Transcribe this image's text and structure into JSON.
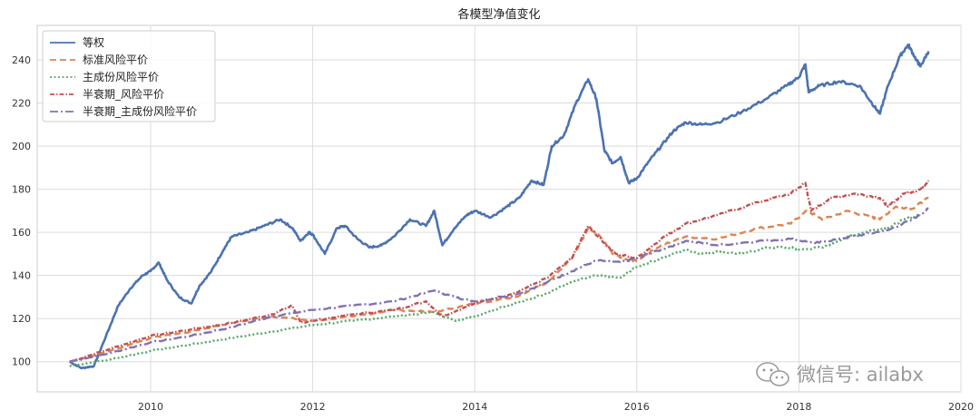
{
  "chart_data": {
    "type": "line",
    "title": "各模型净值变化",
    "xlabel": "",
    "ylabel": "",
    "xlim": [
      2008.6,
      2020.0
    ],
    "ylim": [
      86,
      256
    ],
    "x_ticks": [
      "2010",
      "2012",
      "2014",
      "2016",
      "2018",
      "2020"
    ],
    "y_ticks": [
      "100",
      "120",
      "140",
      "160",
      "180",
      "200",
      "220",
      "240"
    ],
    "grid": true,
    "legend_position": "top-left",
    "series": [
      {
        "name": "等权",
        "color": "#4c72b0",
        "dash": "solid",
        "points": [
          [
            2009.0,
            100
          ],
          [
            2009.15,
            97
          ],
          [
            2009.3,
            98
          ],
          [
            2009.45,
            112
          ],
          [
            2009.6,
            126
          ],
          [
            2009.75,
            134
          ],
          [
            2009.9,
            140
          ],
          [
            2010.0,
            142
          ],
          [
            2010.1,
            146
          ],
          [
            2010.2,
            138
          ],
          [
            2010.35,
            130
          ],
          [
            2010.5,
            127
          ],
          [
            2010.6,
            135
          ],
          [
            2010.75,
            142
          ],
          [
            2010.9,
            152
          ],
          [
            2011.0,
            158
          ],
          [
            2011.2,
            160
          ],
          [
            2011.4,
            163
          ],
          [
            2011.6,
            166
          ],
          [
            2011.75,
            162
          ],
          [
            2011.85,
            156
          ],
          [
            2011.95,
            160
          ],
          [
            2012.0,
            159
          ],
          [
            2012.15,
            150
          ],
          [
            2012.3,
            162
          ],
          [
            2012.4,
            163
          ],
          [
            2012.55,
            157
          ],
          [
            2012.7,
            153
          ],
          [
            2012.85,
            154
          ],
          [
            2013.0,
            158
          ],
          [
            2013.2,
            166
          ],
          [
            2013.4,
            163
          ],
          [
            2013.5,
            170
          ],
          [
            2013.6,
            154
          ],
          [
            2013.75,
            162
          ],
          [
            2013.9,
            168
          ],
          [
            2014.0,
            170
          ],
          [
            2014.2,
            167
          ],
          [
            2014.4,
            172
          ],
          [
            2014.55,
            176
          ],
          [
            2014.7,
            184
          ],
          [
            2014.85,
            182
          ],
          [
            2014.95,
            200
          ],
          [
            2015.1,
            205
          ],
          [
            2015.25,
            220
          ],
          [
            2015.4,
            231
          ],
          [
            2015.5,
            222
          ],
          [
            2015.6,
            198
          ],
          [
            2015.7,
            192
          ],
          [
            2015.8,
            195
          ],
          [
            2015.9,
            183
          ],
          [
            2016.0,
            185
          ],
          [
            2016.15,
            193
          ],
          [
            2016.3,
            200
          ],
          [
            2016.45,
            207
          ],
          [
            2016.6,
            211
          ],
          [
            2016.8,
            210
          ],
          [
            2017.0,
            211
          ],
          [
            2017.3,
            216
          ],
          [
            2017.6,
            222
          ],
          [
            2017.85,
            228
          ],
          [
            2018.0,
            232
          ],
          [
            2018.08,
            238
          ],
          [
            2018.12,
            225
          ],
          [
            2018.25,
            228
          ],
          [
            2018.5,
            230
          ],
          [
            2018.75,
            228
          ],
          [
            2018.9,
            220
          ],
          [
            2019.0,
            215
          ],
          [
            2019.1,
            228
          ],
          [
            2019.25,
            242
          ],
          [
            2019.35,
            247
          ],
          [
            2019.45,
            240
          ],
          [
            2019.5,
            237
          ],
          [
            2019.6,
            244
          ]
        ]
      },
      {
        "name": "标准风险平价",
        "color": "#dd8452",
        "dash": "dashed",
        "points": [
          [
            2009.0,
            100
          ],
          [
            2009.5,
            105
          ],
          [
            2010.0,
            111
          ],
          [
            2010.5,
            114
          ],
          [
            2011.0,
            118
          ],
          [
            2011.5,
            121
          ],
          [
            2012.0,
            119
          ],
          [
            2012.5,
            121
          ],
          [
            2013.0,
            124
          ],
          [
            2013.5,
            123
          ],
          [
            2014.0,
            127
          ],
          [
            2014.5,
            130
          ],
          [
            2014.9,
            137
          ],
          [
            2015.2,
            148
          ],
          [
            2015.4,
            162
          ],
          [
            2015.55,
            158
          ],
          [
            2015.7,
            150
          ],
          [
            2015.9,
            147
          ],
          [
            2016.0,
            147
          ],
          [
            2016.3,
            154
          ],
          [
            2016.6,
            158
          ],
          [
            2017.0,
            157
          ],
          [
            2017.5,
            162
          ],
          [
            2017.9,
            164
          ],
          [
            2018.1,
            170
          ],
          [
            2018.3,
            166
          ],
          [
            2018.6,
            170
          ],
          [
            2018.9,
            167
          ],
          [
            2019.0,
            166
          ],
          [
            2019.2,
            172
          ],
          [
            2019.4,
            171
          ],
          [
            2019.6,
            176
          ]
        ]
      },
      {
        "name": "主成份风险平价",
        "color": "#55a868",
        "dash": "dotted",
        "points": [
          [
            2009.0,
            98
          ],
          [
            2009.5,
            101
          ],
          [
            2010.0,
            105
          ],
          [
            2010.5,
            108
          ],
          [
            2011.0,
            111
          ],
          [
            2011.5,
            114
          ],
          [
            2012.0,
            117
          ],
          [
            2012.5,
            119
          ],
          [
            2013.0,
            121
          ],
          [
            2013.5,
            123
          ],
          [
            2013.75,
            119
          ],
          [
            2014.0,
            121
          ],
          [
            2014.3,
            125
          ],
          [
            2014.6,
            128
          ],
          [
            2014.9,
            132
          ],
          [
            2015.2,
            137
          ],
          [
            2015.5,
            140
          ],
          [
            2015.8,
            139
          ],
          [
            2016.0,
            144
          ],
          [
            2016.3,
            148
          ],
          [
            2016.6,
            152
          ],
          [
            2016.8,
            150
          ],
          [
            2017.0,
            151
          ],
          [
            2017.3,
            150
          ],
          [
            2017.6,
            153
          ],
          [
            2017.9,
            153
          ],
          [
            2018.0,
            152
          ],
          [
            2018.3,
            153
          ],
          [
            2018.6,
            158
          ],
          [
            2018.9,
            161
          ],
          [
            2019.1,
            162
          ],
          [
            2019.3,
            166
          ],
          [
            2019.5,
            168
          ]
        ]
      },
      {
        "name": "半衰期_风险平价",
        "color": "#c44e52",
        "dash": "dashdot-short",
        "points": [
          [
            2009.0,
            100
          ],
          [
            2009.5,
            106
          ],
          [
            2010.0,
            112
          ],
          [
            2010.5,
            115
          ],
          [
            2011.0,
            118
          ],
          [
            2011.5,
            122
          ],
          [
            2011.75,
            126
          ],
          [
            2011.85,
            118
          ],
          [
            2012.0,
            119
          ],
          [
            2012.5,
            122
          ],
          [
            2013.0,
            124
          ],
          [
            2013.4,
            128
          ],
          [
            2013.6,
            121
          ],
          [
            2014.0,
            127
          ],
          [
            2014.5,
            132
          ],
          [
            2014.9,
            139
          ],
          [
            2015.2,
            148
          ],
          [
            2015.4,
            163
          ],
          [
            2015.6,
            155
          ],
          [
            2015.75,
            150
          ],
          [
            2016.0,
            148
          ],
          [
            2016.3,
            157
          ],
          [
            2016.6,
            164
          ],
          [
            2017.0,
            168
          ],
          [
            2017.5,
            174
          ],
          [
            2017.9,
            178
          ],
          [
            2018.08,
            183
          ],
          [
            2018.15,
            170
          ],
          [
            2018.4,
            176
          ],
          [
            2018.7,
            178
          ],
          [
            2019.0,
            176
          ],
          [
            2019.1,
            172
          ],
          [
            2019.3,
            178
          ],
          [
            2019.5,
            180
          ],
          [
            2019.6,
            184
          ]
        ]
      },
      {
        "name": "半衰期_主成份风险平价",
        "color": "#8172b3",
        "dash": "dashdot",
        "points": [
          [
            2009.0,
            100
          ],
          [
            2009.5,
            104
          ],
          [
            2010.0,
            109
          ],
          [
            2010.5,
            112
          ],
          [
            2011.0,
            116
          ],
          [
            2011.5,
            121
          ],
          [
            2012.0,
            124
          ],
          [
            2012.5,
            126
          ],
          [
            2013.0,
            128
          ],
          [
            2013.5,
            133
          ],
          [
            2013.75,
            130
          ],
          [
            2014.0,
            128
          ],
          [
            2014.5,
            131
          ],
          [
            2014.9,
            137
          ],
          [
            2015.2,
            142
          ],
          [
            2015.5,
            147
          ],
          [
            2015.8,
            146
          ],
          [
            2016.0,
            148
          ],
          [
            2016.3,
            152
          ],
          [
            2016.6,
            156
          ],
          [
            2017.0,
            154
          ],
          [
            2017.5,
            156
          ],
          [
            2017.9,
            157
          ],
          [
            2018.2,
            155
          ],
          [
            2018.5,
            157
          ],
          [
            2018.8,
            159
          ],
          [
            2019.1,
            161
          ],
          [
            2019.4,
            166
          ],
          [
            2019.6,
            171
          ]
        ]
      }
    ]
  },
  "watermark": {
    "icon": "wechat-icon",
    "text": "微信号: ailabx"
  }
}
